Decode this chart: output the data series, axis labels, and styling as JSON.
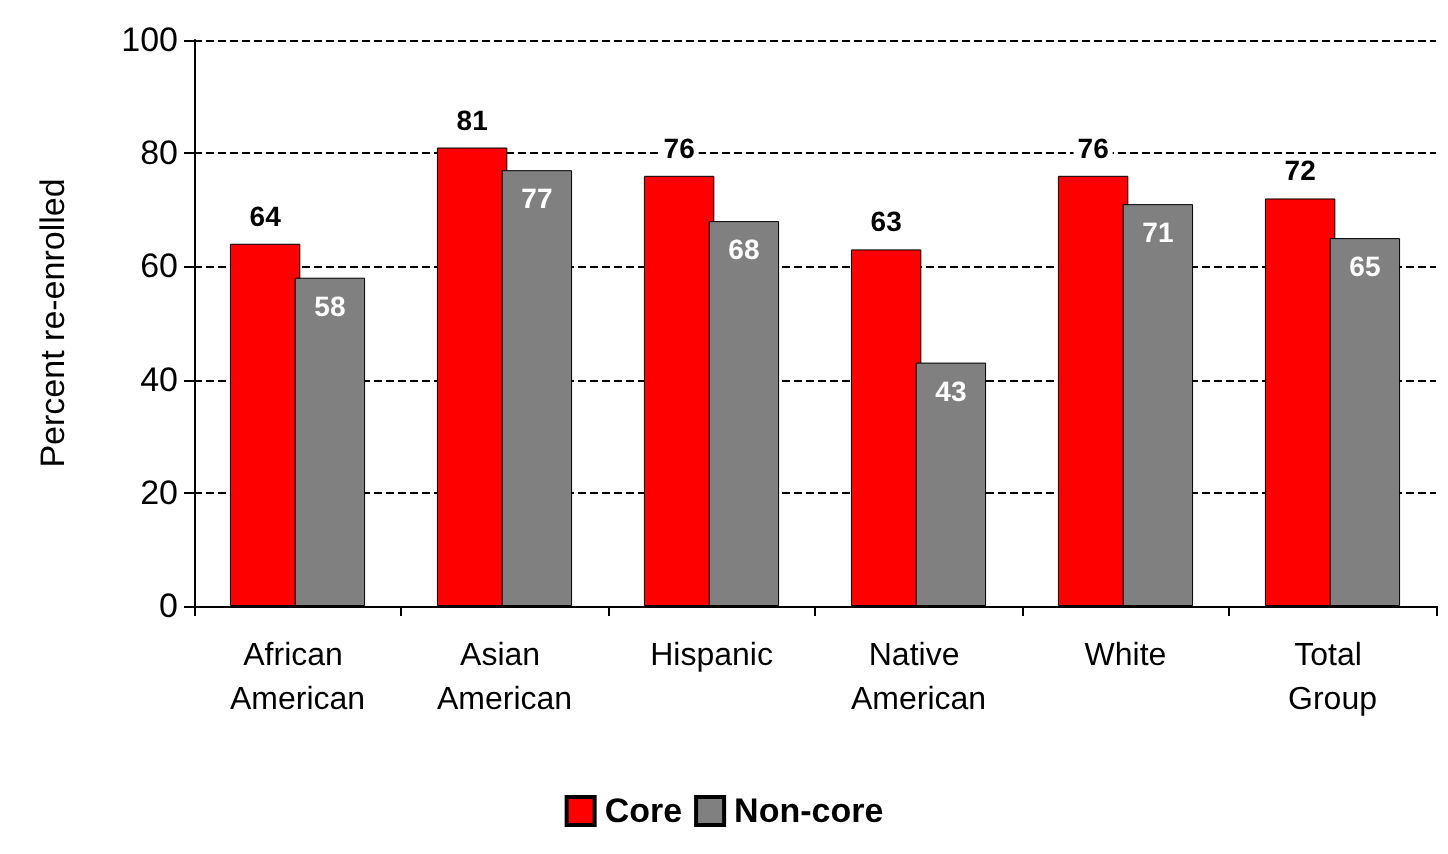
{
  "chart_data": {
    "type": "bar",
    "ylabel": "Percent re-enrolled",
    "categories": [
      "African American",
      "Asian American",
      "Hispanic",
      "Native American",
      "White",
      "Total Group"
    ],
    "series": [
      {
        "name": "Core",
        "color": "#ff0000",
        "values": [
          64,
          81,
          76,
          63,
          76,
          72
        ]
      },
      {
        "name": "Non-core",
        "color": "#808080",
        "values": [
          58,
          77,
          68,
          43,
          71,
          65
        ]
      }
    ],
    "ylim": [
      0,
      100
    ],
    "yticks": [
      0,
      20,
      40,
      60,
      80,
      100
    ],
    "grid": "y",
    "legend": "bottom",
    "data_labels": true
  }
}
